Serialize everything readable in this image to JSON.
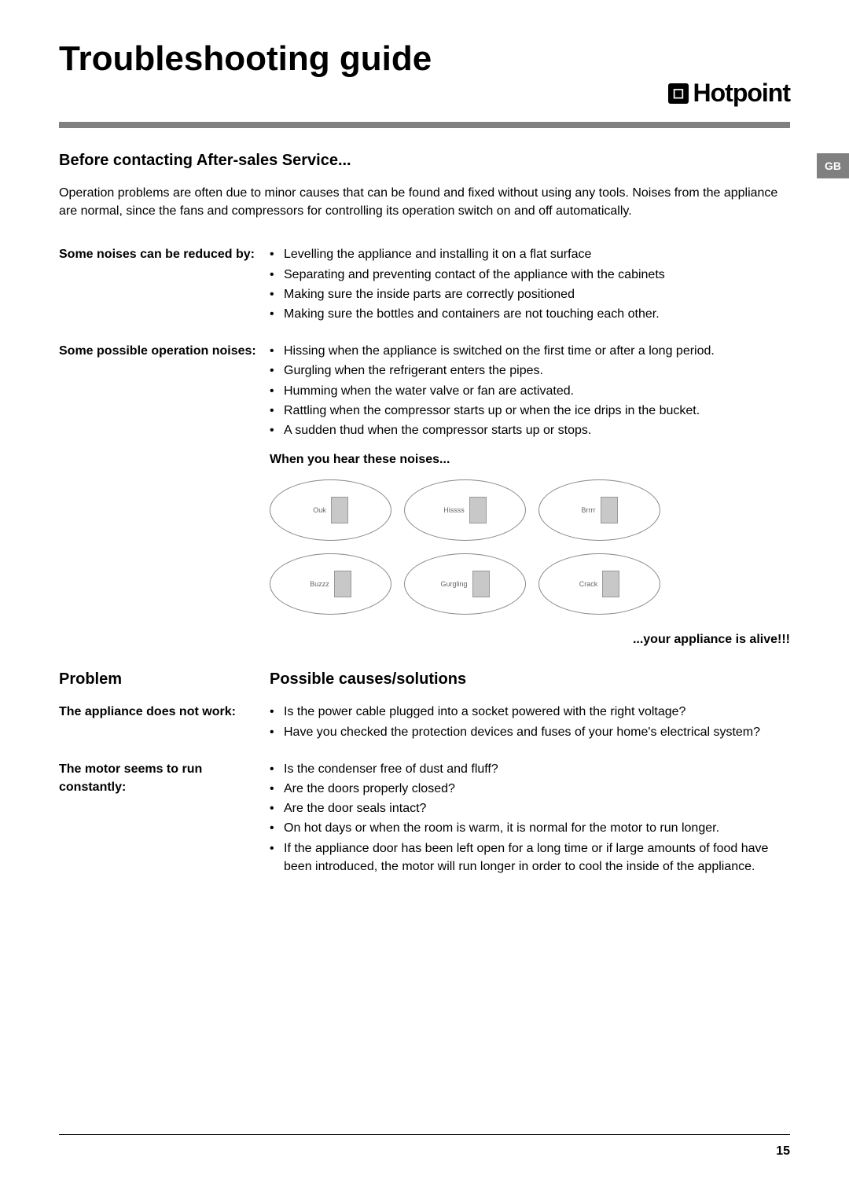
{
  "title": "Troubleshooting guide",
  "brand": "Hotpoint",
  "lang_tab": "GB",
  "heading_before": "Before contacting After-sales Service...",
  "intro": "Operation problems are often due to minor causes that can be found and fixed without using any tools. Noises from the appliance are normal, since the fans and compressors for controlling its operation switch on and off automatically.",
  "noise_reduce_label": "Some noises can be reduced by:",
  "noise_reduce_items": [
    "Levelling the appliance and installing it on a flat surface",
    "Separating and preventing contact of the appliance with the cabinets",
    "Making sure the inside parts are correctly positioned",
    "Making sure the bottles and containers are not touching each other."
  ],
  "operation_noises_label": "Some possible operation noises:",
  "operation_noises_items": [
    "Hissing when the appliance is switched on the first time or after a long period.",
    "Gurgling when the refrigerant enters the pipes.",
    "Humming when the water valve or fan are activated.",
    "Rattling when the compressor starts up or when the ice drips in the bucket.",
    "A sudden thud when the compressor starts up or stops."
  ],
  "when_hear": "When you hear these noises...",
  "illus_labels": [
    "Ouk",
    "Hissss",
    "Brrrr",
    "Buzzz",
    "Gurgling",
    "Crack"
  ],
  "tagline": "...your appliance is alive!!!",
  "problem_header": "Problem",
  "causes_header": "Possible causes/solutions",
  "problems": [
    {
      "label": "The appliance does not work:",
      "items": [
        "Is the power cable plugged into a socket powered with the right voltage?",
        "Have you checked the protection devices and fuses of your home's electrical system?"
      ]
    },
    {
      "label": "The motor seems to run constantly:",
      "items": [
        "Is the condenser free of dust and fluff?",
        "Are the doors properly closed?",
        "Are the door seals intact?",
        "On hot days or when the room is warm, it is normal for the motor to run longer.",
        "If the appliance door has been left open for a long time or if large amounts of food have been introduced, the motor will run longer in order to cool the inside of the appliance."
      ]
    }
  ],
  "page_number": "15",
  "colors": {
    "rule": "#808080",
    "tab_bg": "#808080",
    "ellipse_border": "#888888",
    "box_fill": "#c8c8c8"
  }
}
